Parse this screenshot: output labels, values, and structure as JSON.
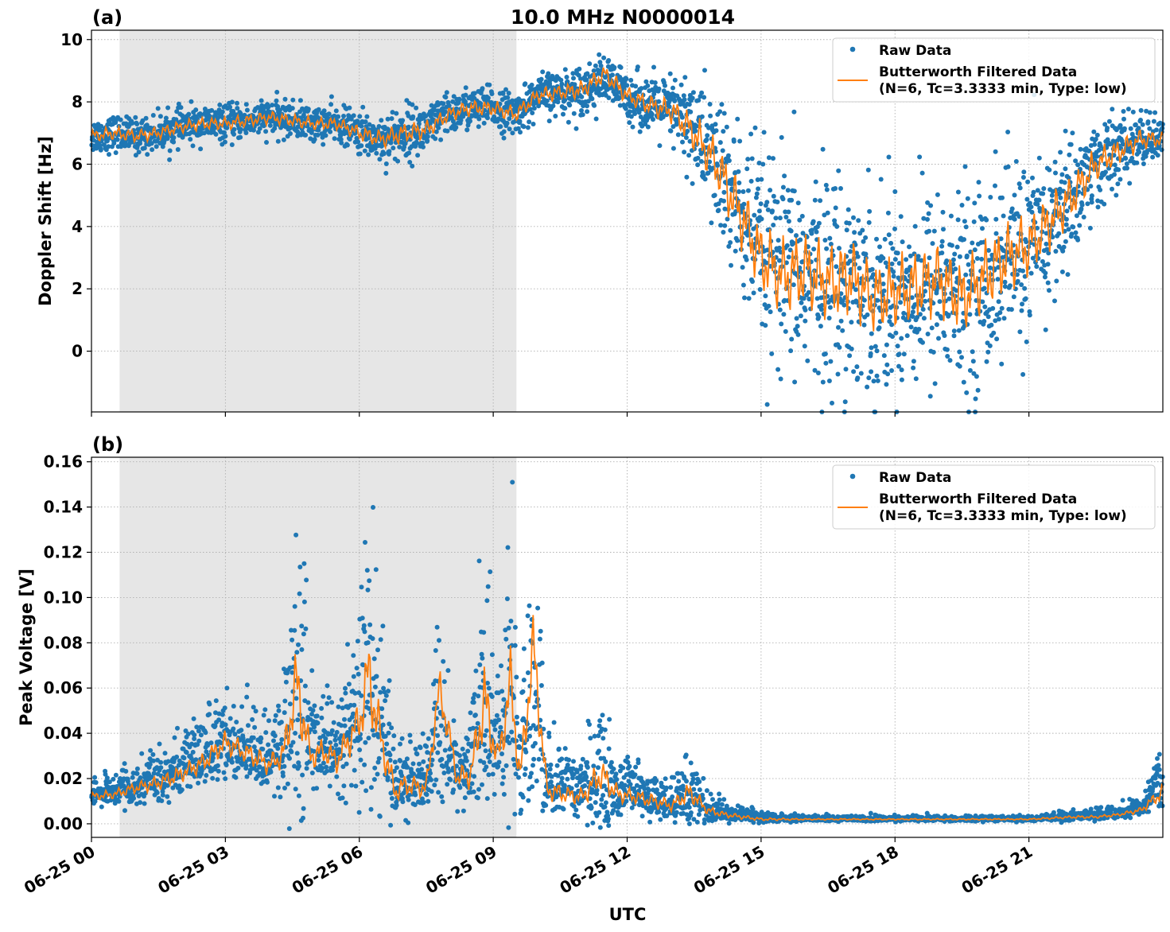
{
  "figure": {
    "title": "10.0 MHz N0000014",
    "xlabel": "UTC",
    "xticks": [
      "06-25 00",
      "06-25 03",
      "06-25 06",
      "06-25 09",
      "06-25 12",
      "06-25 15",
      "06-25 18",
      "06-25 21"
    ]
  },
  "colors": {
    "raw": "#1f77b4",
    "filtered": "#ff7f0e",
    "shade": "#e6e6e6",
    "grid": "#b0b0b0"
  },
  "chart_data": [
    {
      "type": "scatter",
      "panel_label": "(a)",
      "ylabel": "Doppler Shift [Hz]",
      "x_unit": "hours UTC on 06-25",
      "xlim": [
        0,
        24
      ],
      "ylim": [
        -1.95,
        10.3
      ],
      "yticks": [
        "0",
        "2",
        "4",
        "6",
        "8",
        "10"
      ],
      "ytick_values": [
        0,
        2,
        4,
        6,
        8,
        10
      ],
      "grid": true,
      "legend_position": "top-right",
      "shaded_region": [
        0.63,
        9.52
      ],
      "series": [
        {
          "name": "Raw Data",
          "style": "points",
          "x": [
            0,
            0.5,
            1,
            1.5,
            2,
            2.5,
            3,
            3.5,
            4,
            4.5,
            5,
            5.5,
            6,
            6.5,
            7,
            7.5,
            8,
            8.5,
            9,
            9.5,
            10,
            10.5,
            11,
            11.5,
            12,
            12.5,
            13,
            13.5,
            14,
            14.5,
            15,
            15.5,
            16,
            16.5,
            17,
            17.5,
            18,
            18.5,
            19,
            19.5,
            20,
            20.5,
            21,
            21.5,
            22,
            22.5,
            23,
            23.5,
            24
          ],
          "center": [
            6.9,
            7.0,
            6.9,
            7.0,
            7.2,
            7.3,
            7.3,
            7.4,
            7.5,
            7.4,
            7.3,
            7.3,
            7.0,
            6.8,
            7.0,
            7.1,
            7.6,
            7.8,
            7.8,
            7.6,
            8.2,
            8.3,
            8.4,
            8.7,
            8.2,
            7.9,
            7.7,
            7.2,
            6.0,
            4.5,
            3.2,
            2.5,
            2.5,
            2.3,
            2.3,
            1.8,
            1.9,
            2.0,
            2.2,
            1.8,
            2.3,
            3.0,
            3.3,
            4.0,
            5.0,
            6.0,
            6.4,
            6.8,
            6.8
          ],
          "spread": [
            0.5,
            0.5,
            0.5,
            0.5,
            0.5,
            0.5,
            0.5,
            0.5,
            0.5,
            0.5,
            0.5,
            0.5,
            0.6,
            0.7,
            0.8,
            0.7,
            0.6,
            0.6,
            0.6,
            0.6,
            0.6,
            0.6,
            0.7,
            0.7,
            0.7,
            0.8,
            1.0,
            1.5,
            2.0,
            2.5,
            2.8,
            3.0,
            3.0,
            3.0,
            3.0,
            2.8,
            2.8,
            2.8,
            2.8,
            2.8,
            2.8,
            2.8,
            2.5,
            2.2,
            1.8,
            1.3,
            1.0,
            0.8,
            0.6
          ]
        },
        {
          "name": "Butterworth Filtered Data\n(N=6, Tc=3.3333 min, Type: low)",
          "style": "line",
          "x": [
            0,
            0.5,
            1,
            1.5,
            2,
            2.5,
            3,
            3.5,
            4,
            4.5,
            5,
            5.5,
            6,
            6.5,
            7,
            7.5,
            8,
            8.5,
            9,
            9.5,
            10,
            10.5,
            11,
            11.5,
            12,
            12.5,
            13,
            13.5,
            14,
            14.5,
            15,
            15.5,
            16,
            16.5,
            17,
            17.5,
            18,
            18.5,
            19,
            19.5,
            20,
            20.5,
            21,
            21.5,
            22,
            22.5,
            23,
            23.5,
            24
          ],
          "y": [
            6.9,
            7.0,
            6.9,
            7.0,
            7.2,
            7.3,
            7.3,
            7.4,
            7.5,
            7.4,
            7.3,
            7.3,
            7.0,
            6.8,
            7.0,
            7.1,
            7.6,
            7.8,
            7.8,
            7.6,
            8.2,
            8.3,
            8.4,
            8.9,
            8.2,
            7.9,
            7.7,
            7.0,
            6.0,
            4.5,
            3.0,
            2.4,
            2.6,
            2.2,
            2.4,
            1.7,
            1.9,
            2.1,
            2.3,
            1.7,
            2.4,
            3.0,
            3.4,
            4.2,
            5.0,
            6.0,
            6.4,
            6.8,
            6.8
          ]
        }
      ]
    },
    {
      "type": "scatter",
      "panel_label": "(b)",
      "ylabel": "Peak Voltage [V]",
      "x_unit": "hours UTC on 06-25",
      "xlim": [
        0,
        24
      ],
      "ylim": [
        -0.006,
        0.162
      ],
      "yticks": [
        "0.00",
        "0.02",
        "0.04",
        "0.06",
        "0.08",
        "0.10",
        "0.12",
        "0.14",
        "0.16"
      ],
      "ytick_values": [
        0,
        0.02,
        0.04,
        0.06,
        0.08,
        0.1,
        0.12,
        0.14,
        0.16
      ],
      "grid": true,
      "legend_position": "top-right",
      "shaded_region": [
        0.63,
        9.52
      ],
      "series": [
        {
          "name": "Raw Data",
          "style": "points",
          "x": [
            0,
            0.5,
            1,
            1.5,
            2,
            2.5,
            3,
            3.5,
            4,
            4.3,
            4.6,
            4.9,
            5.2,
            5.5,
            6,
            6.2,
            6.5,
            6.8,
            7,
            7.5,
            7.8,
            8.2,
            8.5,
            8.8,
            9.1,
            9.4,
            9.6,
            9.9,
            10.2,
            10.6,
            11,
            11.4,
            11.8,
            12.2,
            12.6,
            13,
            13.4,
            13.8,
            14.2,
            14.6,
            15,
            16,
            17,
            18,
            19,
            20,
            21,
            22,
            22.5,
            23,
            23.5,
            24
          ],
          "center": [
            0.012,
            0.013,
            0.016,
            0.018,
            0.022,
            0.027,
            0.033,
            0.03,
            0.026,
            0.03,
            0.05,
            0.03,
            0.032,
            0.028,
            0.04,
            0.055,
            0.035,
            0.015,
            0.017,
            0.016,
            0.04,
            0.02,
            0.022,
            0.045,
            0.028,
            0.05,
            0.02,
            0.045,
            0.015,
            0.014,
            0.012,
            0.015,
            0.013,
            0.012,
            0.01,
            0.008,
            0.01,
            0.006,
            0.004,
            0.003,
            0.002,
            0.002,
            0.002,
            0.002,
            0.002,
            0.002,
            0.002,
            0.003,
            0.003,
            0.004,
            0.006,
            0.015
          ],
          "spread": [
            0.006,
            0.006,
            0.008,
            0.01,
            0.012,
            0.014,
            0.016,
            0.015,
            0.015,
            0.02,
            0.06,
            0.02,
            0.018,
            0.018,
            0.03,
            0.06,
            0.03,
            0.015,
            0.015,
            0.014,
            0.03,
            0.016,
            0.02,
            0.055,
            0.02,
            0.055,
            0.02,
            0.055,
            0.015,
            0.012,
            0.012,
            0.025,
            0.012,
            0.01,
            0.01,
            0.008,
            0.015,
            0.006,
            0.004,
            0.003,
            0.002,
            0.001,
            0.001,
            0.001,
            0.001,
            0.001,
            0.001,
            0.002,
            0.002,
            0.002,
            0.004,
            0.012
          ]
        },
        {
          "name": "Butterworth Filtered Data\n(N=6, Tc=3.3333 min, Type: low)",
          "style": "line",
          "x": [
            0,
            0.5,
            1,
            1.5,
            2,
            2.5,
            3,
            3.5,
            4,
            4.3,
            4.6,
            4.9,
            5.2,
            5.5,
            6,
            6.2,
            6.5,
            6.8,
            7,
            7.5,
            7.8,
            8.2,
            8.5,
            8.8,
            9.1,
            9.4,
            9.6,
            9.9,
            10.2,
            10.6,
            11,
            11.4,
            11.8,
            12.2,
            12.6,
            13,
            13.4,
            13.8,
            14.2,
            14.6,
            15,
            16,
            17,
            18,
            19,
            20,
            21,
            22,
            22.5,
            23,
            23.5,
            24
          ],
          "y": [
            0.012,
            0.013,
            0.016,
            0.018,
            0.022,
            0.027,
            0.036,
            0.031,
            0.026,
            0.031,
            0.062,
            0.03,
            0.032,
            0.028,
            0.045,
            0.066,
            0.036,
            0.014,
            0.017,
            0.016,
            0.06,
            0.02,
            0.022,
            0.055,
            0.028,
            0.062,
            0.02,
            0.078,
            0.015,
            0.013,
            0.012,
            0.022,
            0.013,
            0.012,
            0.01,
            0.008,
            0.014,
            0.006,
            0.004,
            0.003,
            0.002,
            0.002,
            0.002,
            0.002,
            0.002,
            0.002,
            0.002,
            0.003,
            0.003,
            0.004,
            0.006,
            0.014
          ]
        }
      ]
    }
  ]
}
